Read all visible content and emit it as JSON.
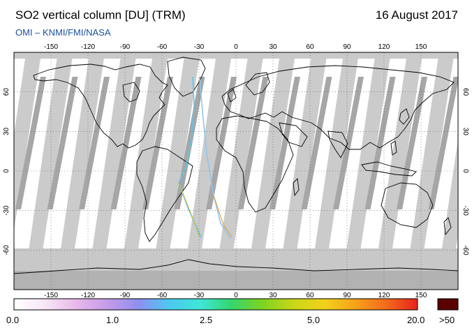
{
  "header": {
    "title": "SO2 vertical column [DU] (TRM)",
    "date": "16 August 2017",
    "credit": "OMI  –  KNMI/FMI/NASA"
  },
  "map": {
    "lon_ticks": [
      -150,
      -120,
      -90,
      -60,
      -30,
      0,
      30,
      60,
      90,
      120,
      150
    ],
    "lat_ticks": [
      60,
      30,
      0,
      -30,
      -60
    ],
    "lon_range": [
      -180,
      180
    ],
    "lat_range": [
      -90,
      90
    ],
    "colors": {
      "no_data": "#c8c8c8",
      "swath_overlap": "#a9a9a9",
      "polar_gap": "#b5b5b5",
      "land_outline": "#000000"
    }
  },
  "colorbar": {
    "labels": [
      "0.0",
      "1.0",
      "2.5",
      "5.0",
      "20.0",
      ">50"
    ],
    "overflow_color": "#5a0000",
    "stops": [
      "#ffffff",
      "#f6e6f6",
      "#e9b8ea",
      "#c69be9",
      "#8f8ff0",
      "#4cc9f0",
      "#3fe6d8",
      "#34d66e",
      "#7ed321",
      "#c9d619",
      "#f2d21a",
      "#f6a21a",
      "#f26a1c",
      "#e8241b"
    ]
  }
}
